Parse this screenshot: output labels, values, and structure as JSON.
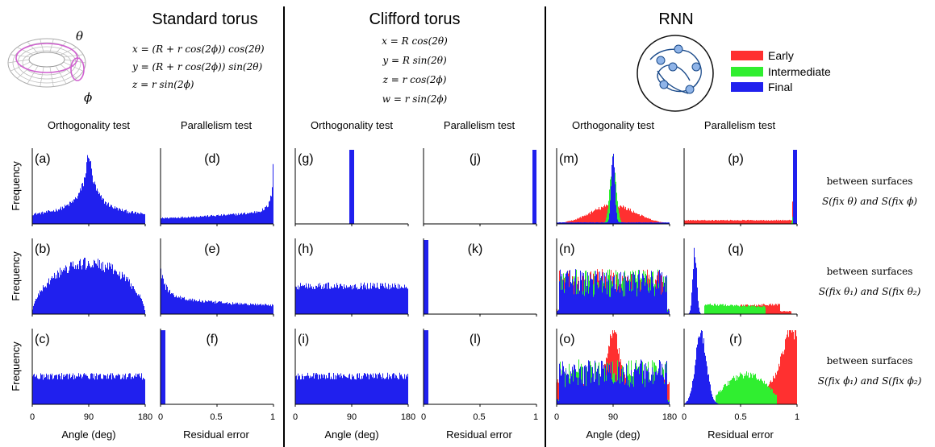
{
  "sections": [
    {
      "title": "Standard torus"
    },
    {
      "title": "Clifford torus"
    },
    {
      "title": "RNN"
    }
  ],
  "diagram_labels": {
    "theta": "θ",
    "phi": "ϕ"
  },
  "equations": {
    "standard": [
      "x = (R + r cos(2ϕ)) cos(2θ)",
      "y = (R + r cos(2ϕ)) sin(2θ)",
      "z = r sin(2ϕ)"
    ],
    "clifford": [
      "x = R cos(2θ)",
      "y = R sin(2θ)",
      "z = r cos(2ϕ)",
      "w = r sin(2ϕ)"
    ]
  },
  "legend": [
    {
      "label": "Early",
      "color": "#ff3030"
    },
    {
      "label": "Intermediate",
      "color": "#30ee30"
    },
    {
      "label": "Final",
      "color": "#2020ee"
    }
  ],
  "column_headers": [
    "Orthogonality test",
    "Parallelism test",
    "Orthogonality test",
    "Parallelism test",
    "Orthogonality test",
    "Parallelism test"
  ],
  "row_label": "Frequency",
  "row_annotations": [
    {
      "line1": "between surfaces",
      "line2": "S(fix θ) and S(fix ϕ)"
    },
    {
      "line1": "between surfaces",
      "line2": "S(fix θ₁) and S(fix θ₂)"
    },
    {
      "line1": "between surfaces",
      "line2": "S(fix ϕ₁) and S(fix ϕ₂)"
    }
  ],
  "angle_axis": {
    "label": "Angle (deg)",
    "ticks": [
      "0",
      "90",
      "180"
    ],
    "range": [
      0,
      180
    ]
  },
  "residual_axis": {
    "label": "Residual error",
    "ticks": [
      "0",
      "0.5",
      "1"
    ],
    "range": [
      0,
      1
    ]
  },
  "chart_data": [
    {
      "id": "a",
      "label": "(a)",
      "type": "bar",
      "x_range": [
        0,
        180
      ],
      "shape": "cusp_peak_at_90",
      "series": [
        {
          "name": "Final",
          "color": "#2020ee"
        }
      ]
    },
    {
      "id": "b",
      "label": "(b)",
      "type": "bar",
      "x_range": [
        0,
        180
      ],
      "shape": "sine_hump_peak_at_90",
      "series": [
        {
          "name": "Final",
          "color": "#2020ee"
        }
      ]
    },
    {
      "id": "c",
      "label": "(c)",
      "type": "bar",
      "x_range": [
        0,
        180
      ],
      "shape": "uniform",
      "series": [
        {
          "name": "Final",
          "color": "#2020ee"
        }
      ]
    },
    {
      "id": "d",
      "label": "(d)",
      "type": "bar",
      "x_range": [
        0,
        1
      ],
      "shape": "rising_toward_1",
      "series": [
        {
          "name": "Final",
          "color": "#2020ee"
        }
      ]
    },
    {
      "id": "e",
      "label": "(e)",
      "type": "bar",
      "x_range": [
        0,
        1
      ],
      "shape": "decaying_from_0",
      "series": [
        {
          "name": "Final",
          "color": "#2020ee"
        }
      ]
    },
    {
      "id": "f",
      "label": "(f)",
      "type": "bar",
      "x_range": [
        0,
        1
      ],
      "shape": "spike_at_0",
      "series": [
        {
          "name": "Final",
          "color": "#2020ee"
        }
      ]
    },
    {
      "id": "g",
      "label": "(g)",
      "type": "bar",
      "x_range": [
        0,
        180
      ],
      "shape": "spike_at_90",
      "series": [
        {
          "name": "Final",
          "color": "#2020ee"
        }
      ]
    },
    {
      "id": "h",
      "label": "(h)",
      "type": "bar",
      "x_range": [
        0,
        180
      ],
      "shape": "uniform",
      "series": [
        {
          "name": "Final",
          "color": "#2020ee"
        }
      ]
    },
    {
      "id": "i",
      "label": "(i)",
      "type": "bar",
      "x_range": [
        0,
        180
      ],
      "shape": "uniform",
      "series": [
        {
          "name": "Final",
          "color": "#2020ee"
        }
      ]
    },
    {
      "id": "j",
      "label": "(j)",
      "type": "bar",
      "x_range": [
        0,
        1
      ],
      "shape": "spike_at_1",
      "series": [
        {
          "name": "Final",
          "color": "#2020ee"
        }
      ]
    },
    {
      "id": "k",
      "label": "(k)",
      "type": "bar",
      "x_range": [
        0,
        1
      ],
      "shape": "spike_at_0",
      "series": [
        {
          "name": "Final",
          "color": "#2020ee"
        }
      ]
    },
    {
      "id": "l",
      "label": "(l)",
      "type": "bar",
      "x_range": [
        0,
        1
      ],
      "shape": "spike_at_0",
      "series": [
        {
          "name": "Final",
          "color": "#2020ee"
        }
      ]
    },
    {
      "id": "m",
      "label": "(m)",
      "type": "bar",
      "x_range": [
        0,
        180
      ],
      "series": [
        {
          "name": "Early",
          "color": "#ff3030",
          "shape": "broad_low_peak_at_90"
        },
        {
          "name": "Intermediate",
          "color": "#30ee30",
          "shape": "narrow_peak_at_90"
        },
        {
          "name": "Final",
          "color": "#2020ee",
          "shape": "sharp_peak_at_90"
        }
      ]
    },
    {
      "id": "n",
      "label": "(n)",
      "type": "bar",
      "x_range": [
        0,
        180
      ],
      "series": [
        {
          "name": "Early",
          "color": "#ff3030",
          "shape": "noisy_flat"
        },
        {
          "name": "Intermediate",
          "color": "#30ee30",
          "shape": "noisy_flat"
        },
        {
          "name": "Final",
          "color": "#2020ee",
          "shape": "noisy_flat"
        }
      ]
    },
    {
      "id": "o",
      "label": "(o)",
      "type": "bar",
      "x_range": [
        0,
        180
      ],
      "series": [
        {
          "name": "Early",
          "color": "#ff3030",
          "shape": "peak_near_90"
        },
        {
          "name": "Intermediate",
          "color": "#30ee30",
          "shape": "noisy_flat"
        },
        {
          "name": "Final",
          "color": "#2020ee",
          "shape": "noisy_flat"
        }
      ]
    },
    {
      "id": "p",
      "label": "(p)",
      "type": "bar",
      "x_range": [
        0,
        1
      ],
      "series": [
        {
          "name": "Early",
          "color": "#ff3030",
          "shape": "low_flat_rising_at_1"
        },
        {
          "name": "Intermediate",
          "color": "#30ee30",
          "shape": "spike_near_1"
        },
        {
          "name": "Final",
          "color": "#2020ee",
          "shape": "spike_at_1"
        }
      ]
    },
    {
      "id": "q",
      "label": "(q)",
      "type": "bar",
      "x_range": [
        0,
        1
      ],
      "series": [
        {
          "name": "Early",
          "color": "#ff3030",
          "shape": "low_plateau_to_0.85"
        },
        {
          "name": "Intermediate",
          "color": "#30ee30",
          "shape": "low_plateau_to_0.7"
        },
        {
          "name": "Final",
          "color": "#2020ee",
          "shape": "sharp_peak_at_0.1"
        }
      ]
    },
    {
      "id": "r",
      "label": "(r)",
      "type": "bar",
      "x_range": [
        0,
        1
      ],
      "series": [
        {
          "name": "Early",
          "color": "#ff3030",
          "shape": "rising_toward_1"
        },
        {
          "name": "Intermediate",
          "color": "#30ee30",
          "shape": "plateau_0.3_to_0.8"
        },
        {
          "name": "Final",
          "color": "#2020ee",
          "shape": "peak_at_0.15"
        }
      ]
    }
  ]
}
